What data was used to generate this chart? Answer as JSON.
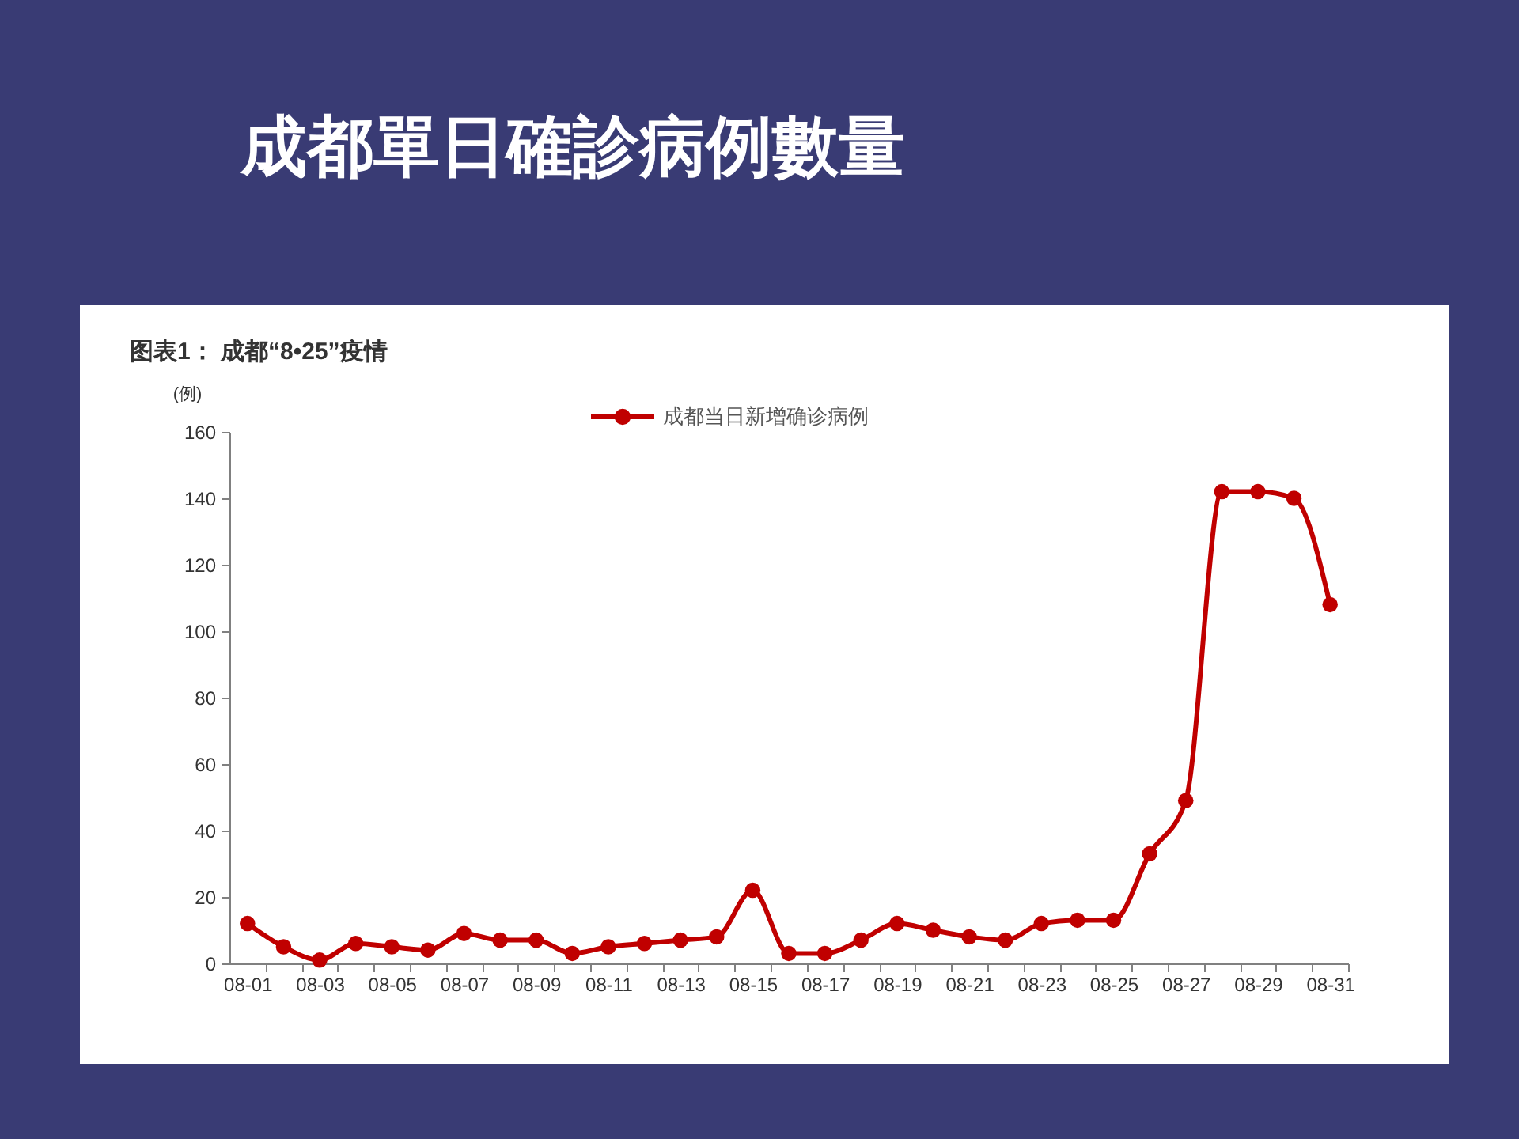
{
  "chart_data": {
    "type": "line",
    "title": "成都單日確診病例數量",
    "subtitle": "图表1： 成都“8•25”疫情",
    "ylabel": "(例)",
    "categories": [
      "08-01",
      null,
      "08-03",
      null,
      "08-05",
      null,
      "08-07",
      null,
      "08-09",
      null,
      "08-11",
      null,
      "08-13",
      null,
      "08-15",
      null,
      "08-17",
      null,
      "08-19",
      null,
      "08-21",
      null,
      "08-23",
      null,
      "08-25",
      null,
      "08-27",
      null,
      "08-29",
      null,
      "08-31"
    ],
    "series": [
      {
        "name": "成都当日新增确诊病例",
        "color": "#c00000",
        "values": [
          12,
          5,
          1,
          6,
          5,
          4,
          9,
          7,
          7,
          3,
          5,
          6,
          7,
          8,
          22,
          3,
          3,
          7,
          12,
          10,
          8,
          7,
          12,
          13,
          13,
          33,
          49,
          142,
          142,
          140,
          108
        ]
      }
    ],
    "ylim": [
      0,
      160
    ],
    "yticks": [
      0,
      20,
      40,
      60,
      80,
      100,
      120,
      140,
      160
    ],
    "grid": false,
    "legend": "top",
    "marker": "circle",
    "line_style": "solid"
  }
}
